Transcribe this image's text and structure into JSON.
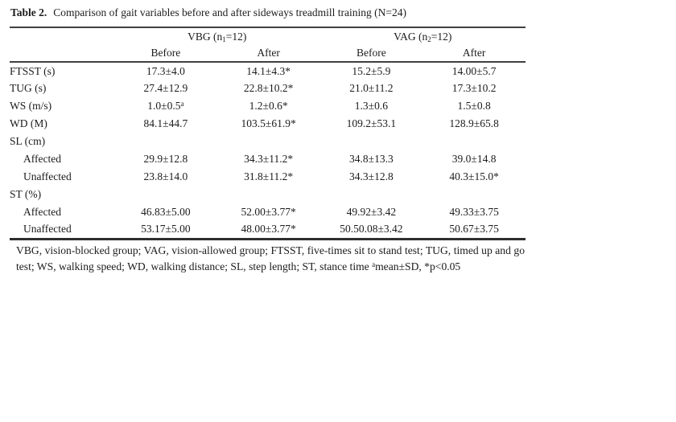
{
  "page": {
    "background": "#ffffff",
    "text_color": "#1c1c1c",
    "rule_color": "#404040"
  },
  "title": {
    "label": "Table 2.",
    "text": "Comparison of gait variables before and after sideways treadmill training (N=24)"
  },
  "table": {
    "group_headers": [
      "VBG (n~1~=12)",
      "VAG (n~2~=12)"
    ],
    "sub_headers": [
      "Before",
      "After",
      "Before",
      "After"
    ],
    "rows": [
      {
        "label": "FTSST (s)",
        "indent": false,
        "values": [
          "17.3±4.0",
          "14.1±4.3*",
          "15.2±5.9",
          "14.00±5.7"
        ]
      },
      {
        "label": "TUG (s)",
        "indent": false,
        "values": [
          "27.4±12.9",
          "22.8±10.2*",
          "21.0±11.2",
          "17.3±10.2"
        ]
      },
      {
        "label": "WS (m/s)",
        "indent": false,
        "values": [
          "1.0±0.5^a^",
          "1.2±0.6*",
          "1.3±0.6",
          "1.5±0.8"
        ]
      },
      {
        "label": "WD (M)",
        "indent": false,
        "values": [
          "84.1±44.7",
          "103.5±61.9*",
          "109.2±53.1",
          "128.9±65.8"
        ]
      },
      {
        "label": "SL (cm)",
        "indent": false,
        "values": [
          "",
          "",
          "",
          ""
        ]
      },
      {
        "label": "Affected",
        "indent": true,
        "values": [
          "29.9±12.8",
          "34.3±11.2*",
          "34.8±13.3",
          "39.0±14.8"
        ]
      },
      {
        "label": "Unaffected",
        "indent": true,
        "values": [
          "23.8±14.0",
          "31.8±11.2*",
          "34.3±12.8",
          "40.3±15.0*"
        ]
      },
      {
        "label": "ST (%)",
        "indent": false,
        "values": [
          "",
          "",
          "",
          ""
        ]
      },
      {
        "label": "Affected",
        "indent": true,
        "values": [
          "46.83±5.00",
          "52.00±3.77*",
          "49.92±3.42",
          "49.33±3.75"
        ]
      },
      {
        "label": "Unaffected",
        "indent": true,
        "values": [
          "53.17±5.00",
          "48.00±3.77*",
          "50.50.08±3.42",
          "50.67±3.75"
        ]
      }
    ]
  },
  "footnote": "VBG, vision-blocked group; VAG, vision-allowed group; FTSST, five-times sit to stand test; TUG, timed up and go test; WS, walking speed; WD, walking distance; SL, step length; ST, stance time ^a^mean±SD, *p<0.05"
}
